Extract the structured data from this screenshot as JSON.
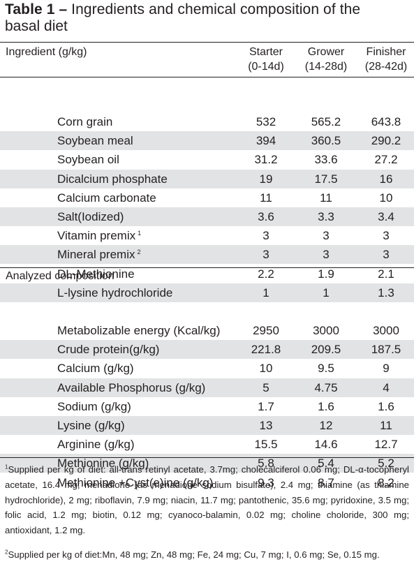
{
  "title": {
    "label": "Table 1 –",
    "text": "Ingredients and chemical composition of the",
    "text2": "basal diet"
  },
  "header": {
    "ingredient": "Ingredient (g/kg)",
    "starter": "Starter",
    "starter_days": "(0-14d)",
    "grower": "Grower",
    "grower_days": "(14-28d)",
    "finisher": "Finisher",
    "finisher_days": "(28-42d)"
  },
  "ingredients": [
    {
      "name": "Corn grain",
      "sup": "",
      "starter": "532",
      "grower": "565.2",
      "finisher": "643.8"
    },
    {
      "name": "Soybean meal",
      "sup": "",
      "starter": "394",
      "grower": "360.5",
      "finisher": "290.2"
    },
    {
      "name": "Soybean oil",
      "sup": "",
      "starter": "31.2",
      "grower": "33.6",
      "finisher": "27.2"
    },
    {
      "name": "Dicalcium phosphate",
      "sup": "",
      "starter": "19",
      "grower": "17.5",
      "finisher": "16"
    },
    {
      "name": "Calcium carbonate",
      "sup": "",
      "starter": "11",
      "grower": "11",
      "finisher": "10"
    },
    {
      "name": "Salt(Iodized)",
      "sup": "",
      "starter": "3.6",
      "grower": "3.3",
      "finisher": "3.4"
    },
    {
      "name": "Vitamin premix",
      "sup": "1",
      "starter": "3",
      "grower": "3",
      "finisher": "3"
    },
    {
      "name": "Mineral premix",
      "sup": "2",
      "starter": "3",
      "grower": "3",
      "finisher": "3"
    },
    {
      "name": "DL-Methionine",
      "sup": "",
      "starter": "2.2",
      "grower": "1.9",
      "finisher": "2.1"
    },
    {
      "name": "L-lysine hydrochloride",
      "sup": "",
      "starter": "1",
      "grower": "1",
      "finisher": "1.3"
    }
  ],
  "section_label": "Analyzed composition",
  "composition": [
    {
      "name": "Metabolizable energy (Kcal/kg)",
      "starter": "2950",
      "grower": "3000",
      "finisher": "3000"
    },
    {
      "name": "Crude protein(g/kg)",
      "starter": "221.8",
      "grower": "209.5",
      "finisher": "187.5"
    },
    {
      "name": "Calcium (g/kg)",
      "starter": "10",
      "grower": "9.5",
      "finisher": "9"
    },
    {
      "name": "Available Phosphorus (g/kg)",
      "starter": "5",
      "grower": "4.75",
      "finisher": "4"
    },
    {
      "name": "Sodium (g/kg)",
      "starter": "1.7",
      "grower": "1.6",
      "finisher": "1.6"
    },
    {
      "name": "Lysine (g/kg)",
      "starter": "13",
      "grower": "12",
      "finisher": "11"
    },
    {
      "name": "Arginine (g/kg)",
      "starter": "15.5",
      "grower": "14.6",
      "finisher": "12.7"
    },
    {
      "name": "Methionine (g/kg)",
      "starter": "5.8",
      "grower": "5.4",
      "finisher": "5.2"
    },
    {
      "name": "Methionine +Cyst(e)ine (g/kg)",
      "starter": "9.3",
      "grower": "8.7",
      "finisher": "8.2"
    }
  ],
  "footnotes": [
    {
      "mark": "1",
      "text": "Supplied per kg of diet: all-trans retinyl acetate, 3.7mg; cholecalciferol 0.06 mg; DL-α-tocopheryl acetate, 16.4 mg; menadione (as menadione sodium bisulfate), 2.4 mg; thiamine (as thiamine hydrochloride), 2 mg; riboflavin, 7.9 mg; niacin, 11.7 mg; pantothenic, 35.6 mg; pyridoxine, 3.5 mg; folic acid, 1.2 mg; biotin, 0.12 mg; cyanoco-balamin, 0.02 mg; choline choloride, 300 mg; antioxidant, 1.2 mg."
    },
    {
      "mark": "2",
      "text": "Supplied per kg of diet:Mn, 48 mg; Zn, 48 mg; Fe, 24 mg; Cu, 7 mg; I, 0.6 mg; Se, 0.15 mg."
    }
  ]
}
